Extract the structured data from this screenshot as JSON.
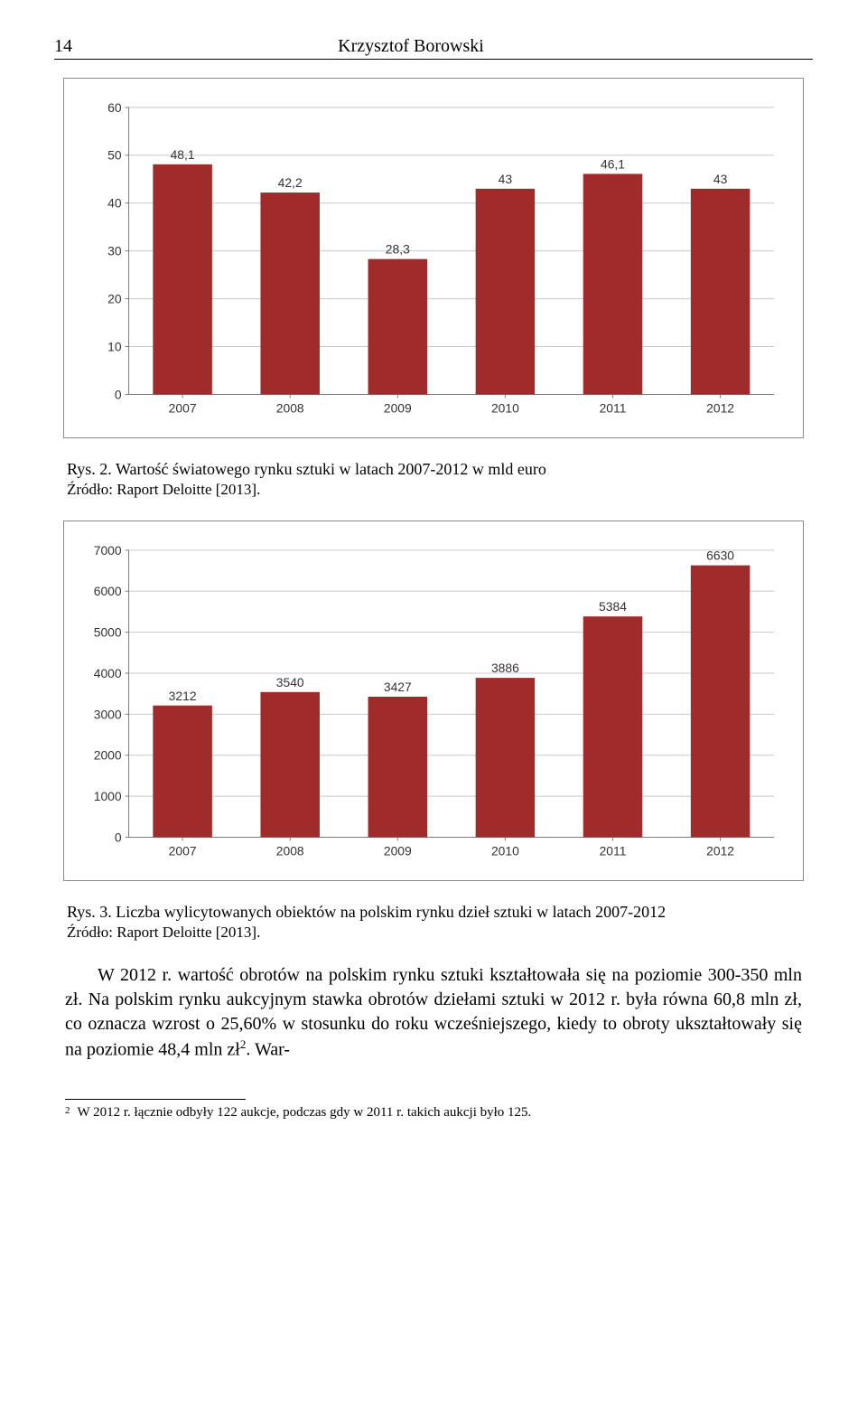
{
  "header": {
    "page_number": "14",
    "author": "Krzysztof Borowski"
  },
  "chart1": {
    "type": "bar",
    "categories": [
      "2007",
      "2008",
      "2009",
      "2010",
      "2011",
      "2012"
    ],
    "values": [
      48.1,
      42.2,
      28.3,
      43,
      46.1,
      43
    ],
    "value_labels": [
      "48,1",
      "42,2",
      "28,3",
      "43",
      "46,1",
      "43"
    ],
    "bar_color": "#a02b2b",
    "ylim_min": 0,
    "ylim_max": 60,
    "ytick_step": 10,
    "ytick_labels": [
      "0",
      "10",
      "20",
      "30",
      "40",
      "50",
      "60"
    ],
    "background_color": "#ffffff",
    "grid_color": "#c8c8c8",
    "axis_color": "#7a7a7a",
    "label_color": "#333333",
    "label_fontsize": 14,
    "value_label_fontsize": 14,
    "bar_width_ratio": 0.55
  },
  "caption1": "Rys. 2. Wartość światowego rynku sztuki w latach 2007-2012 w mld euro",
  "source1": "Źródło: Raport Deloitte [2013].",
  "chart2": {
    "type": "bar",
    "categories": [
      "2007",
      "2008",
      "2009",
      "2010",
      "2011",
      "2012"
    ],
    "values": [
      3212,
      3540,
      3427,
      3886,
      5384,
      6630
    ],
    "value_labels": [
      "3212",
      "3540",
      "3427",
      "3886",
      "5384",
      "6630"
    ],
    "bar_color": "#a02b2b",
    "ylim_min": 0,
    "ylim_max": 7000,
    "ytick_step": 1000,
    "ytick_labels": [
      "0",
      "1000",
      "2000",
      "3000",
      "4000",
      "5000",
      "6000",
      "7000"
    ],
    "background_color": "#ffffff",
    "grid_color": "#c8c8c8",
    "axis_color": "#7a7a7a",
    "label_color": "#333333",
    "label_fontsize": 14,
    "value_label_fontsize": 14,
    "bar_width_ratio": 0.55
  },
  "caption2": "Rys. 3. Liczba wylicytowanych obiektów na polskim rynku dzieł sztuki w latach 2007-2012",
  "source2": "Źródło: Raport Deloitte [2013].",
  "body": {
    "part1": "W 2012 r. wartość obrotów na polskim rynku sztuki kształtowała się na poziomie 300-350 mln zł. Na polskim rynku aukcyjnym stawka obrotów dziełami sztuki w 2012 r. była równa 60,8 mln zł, co oznacza wzrost o 25,60% w stosunku do roku wcześniejszego, kiedy to obroty ukształtowały się na poziomie 48,4 mln zł",
    "sup": "2",
    "part2": ". War-"
  },
  "footnote": {
    "marker": "2",
    "text": "W 2012 r. łącznie odbyły 122 aukcje, podczas gdy w 2011 r. takich aukcji było 125."
  }
}
